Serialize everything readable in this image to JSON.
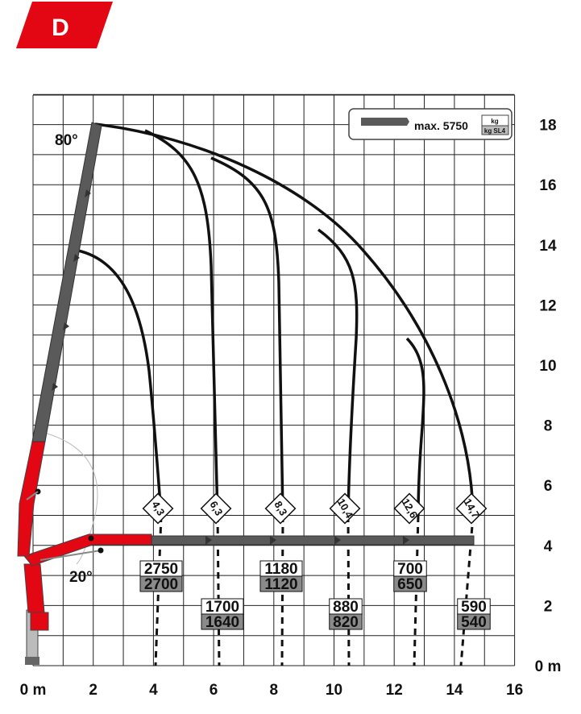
{
  "badge": {
    "letter": "D",
    "color": "#e30613"
  },
  "angles": {
    "top": "80°",
    "bottom": "20°"
  },
  "x_axis": {
    "ticks": [
      "0 m",
      "2",
      "4",
      "6",
      "8",
      "10",
      "12",
      "14",
      "16"
    ],
    "values": [
      0,
      2,
      4,
      6,
      8,
      10,
      12,
      14,
      16
    ]
  },
  "y_axis": {
    "ticks": [
      "0 m",
      "2",
      "4",
      "6",
      "8",
      "10",
      "12",
      "14",
      "16",
      "18"
    ],
    "values": [
      0,
      2,
      4,
      6,
      8,
      10,
      12,
      14,
      16,
      18
    ]
  },
  "legend": {
    "max_label": "max. 5750",
    "unit_top": "kg",
    "unit_bottom": "kg SL4"
  },
  "reach_tags": [
    "4,3",
    "6,3",
    "8,3",
    "10,4",
    "12,6",
    "14,7"
  ],
  "loads": [
    {
      "id": "load-2750",
      "top": "2750",
      "bottom": "2700"
    },
    {
      "id": "load-1700",
      "top": "1700",
      "bottom": "1640"
    },
    {
      "id": "load-1180",
      "top": "1180",
      "bottom": "1120"
    },
    {
      "id": "load-880",
      "top": "880",
      "bottom": "820"
    },
    {
      "id": "load-700",
      "top": "700",
      "bottom": "650"
    },
    {
      "id": "load-590",
      "top": "590",
      "bottom": "540"
    }
  ],
  "colors": {
    "crane_red": "#e30613",
    "boom_grey": "#5a5a5a",
    "grid": "#222222"
  }
}
